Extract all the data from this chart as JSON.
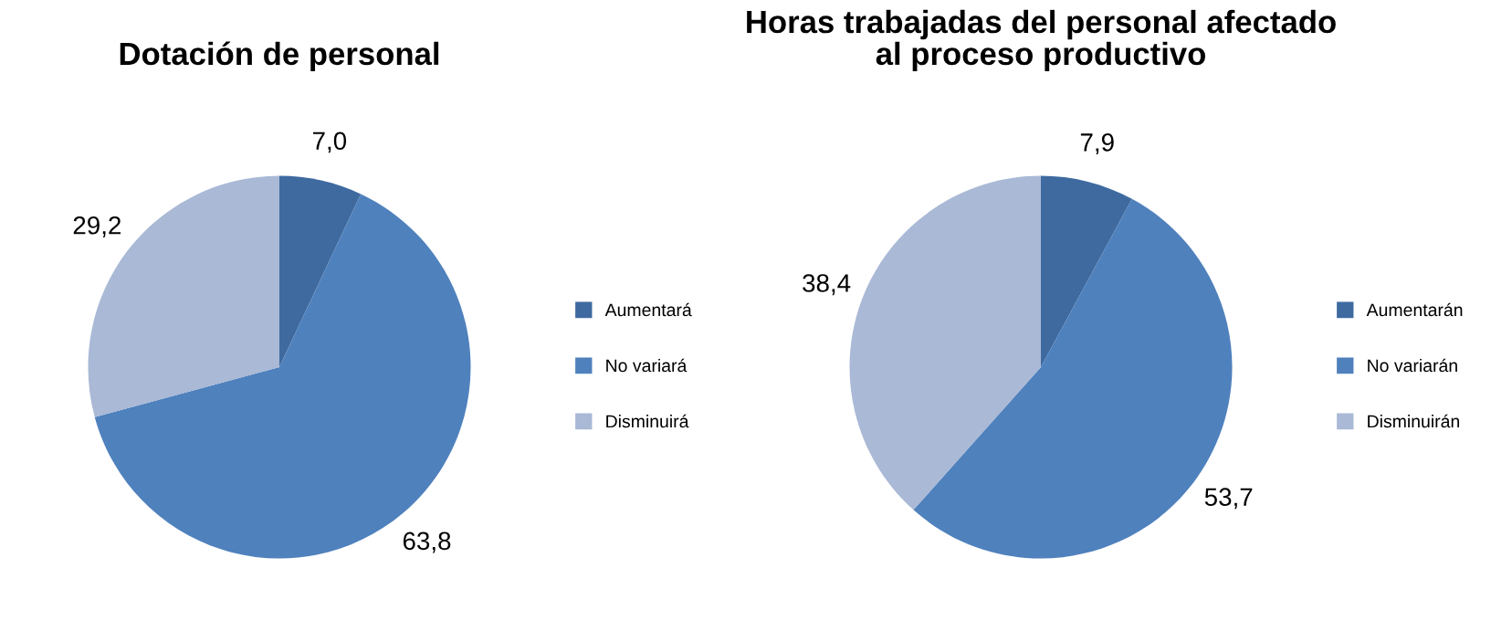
{
  "chart_data": [
    {
      "type": "pie",
      "title": "Dotación de personal",
      "categories": [
        "Aumentará",
        "No variará",
        "Disminuirá"
      ],
      "values": [
        7.0,
        63.8,
        29.2
      ],
      "value_labels": [
        "7,0",
        "63,8",
        "29,2"
      ],
      "colors": [
        "#3e6aa0",
        "#4f81bd",
        "#a9b9d6"
      ],
      "legend": "right"
    },
    {
      "type": "pie",
      "title": "Horas trabajadas del personal afectado\nal proceso productivo",
      "categories": [
        "Aumentarán",
        "No variarán",
        "Disminuirán"
      ],
      "values": [
        7.9,
        53.7,
        38.4
      ],
      "value_labels": [
        "7,9",
        "53,7",
        "38,4"
      ],
      "colors": [
        "#3e6aa0",
        "#4f81bd",
        "#a9b9d6"
      ],
      "legend": "right"
    }
  ]
}
